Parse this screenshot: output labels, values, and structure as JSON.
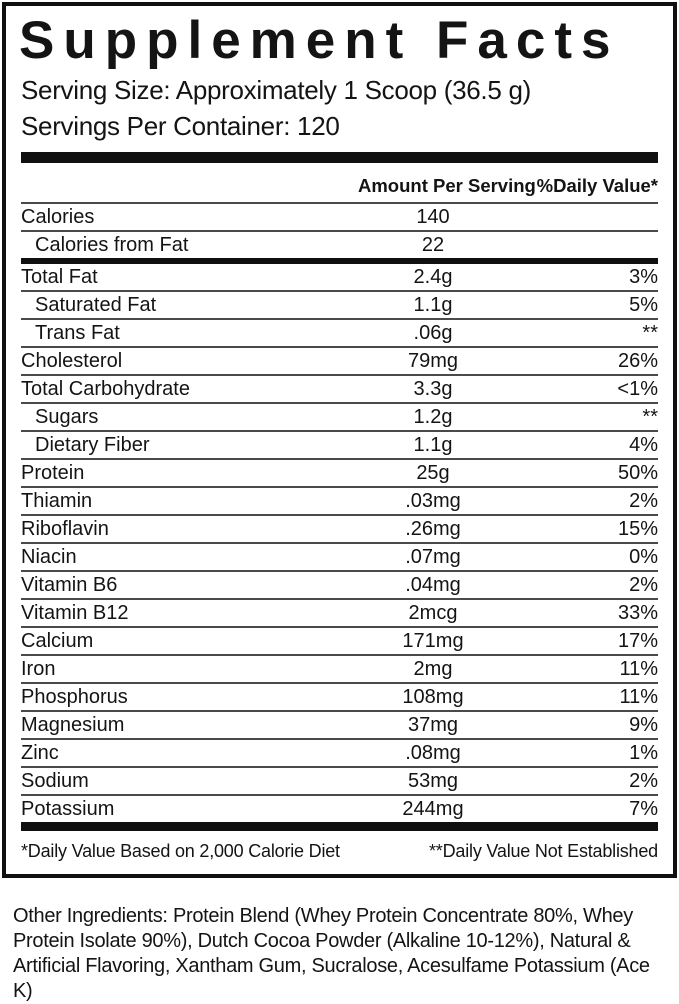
{
  "colors": {
    "background": "#ffffff",
    "text": "#141414",
    "heavy_bar": "#101010",
    "row_rule": "#4a4a4a"
  },
  "label": {
    "title": "Supplement Facts",
    "serving_size": "Serving Size: Approximately 1 Scoop (36.5 g)",
    "servings_per_container": "Servings Per Container: 120",
    "columns": {
      "amount_header": "Amount Per Serving",
      "daily_value_header": "%Daily Value*"
    },
    "rows": [
      {
        "name": "Calories",
        "amount": "140",
        "dv": ""
      },
      {
        "name": "Calories from Fat",
        "amount": "22",
        "dv": "",
        "sub": true,
        "group_end": true
      },
      {
        "name": "Total Fat",
        "amount": "2.4g",
        "dv": "3%"
      },
      {
        "name": "Saturated Fat",
        "amount": "1.1g",
        "dv": "5%",
        "sub": true
      },
      {
        "name": "Trans Fat",
        "amount": ".06g",
        "dv": "**",
        "sub": true
      },
      {
        "name": "Cholesterol",
        "amount": "79mg",
        "dv": "26%"
      },
      {
        "name": "Total Carbohydrate",
        "amount": "3.3g",
        "dv": "<1%"
      },
      {
        "name": "Sugars",
        "amount": "1.2g",
        "dv": "**",
        "sub": true
      },
      {
        "name": "Dietary Fiber",
        "amount": "1.1g",
        "dv": "4%",
        "sub": true
      },
      {
        "name": "Protein",
        "amount": "25g",
        "dv": "50%"
      },
      {
        "name": "Thiamin",
        "amount": ".03mg",
        "dv": "2%"
      },
      {
        "name": "Riboflavin",
        "amount": ".26mg",
        "dv": "15%"
      },
      {
        "name": "Niacin",
        "amount": ".07mg",
        "dv": "0%"
      },
      {
        "name": "Vitamin B6",
        "amount": ".04mg",
        "dv": "2%"
      },
      {
        "name": "Vitamin B12",
        "amount": "2mcg",
        "dv": "33%"
      },
      {
        "name": "Calcium",
        "amount": "171mg",
        "dv": "17%"
      },
      {
        "name": "Iron",
        "amount": "2mg",
        "dv": "11%"
      },
      {
        "name": "Phosphorus",
        "amount": "108mg",
        "dv": "11%"
      },
      {
        "name": "Magnesium",
        "amount": "37mg",
        "dv": "9%"
      },
      {
        "name": "Zinc",
        "amount": ".08mg",
        "dv": "1%"
      },
      {
        "name": "Sodium",
        "amount": "53mg",
        "dv": "2%"
      },
      {
        "name": "Potassium",
        "amount": "244mg",
        "dv": "7%"
      }
    ],
    "footnotes": {
      "left": "*Daily Value Based on 2,000 Calorie Diet",
      "right": "**Daily Value Not Established"
    }
  },
  "other_ingredients": "Other Ingredients: Protein Blend (Whey Protein Concentrate 80%, Whey Protein Isolate 90%), Dutch Cocoa Powder (Alkaline 10-12%), Natural & Artificial Flavoring, Xantham Gum, Sucralose, Acesulfame Potassium (Ace K)"
}
